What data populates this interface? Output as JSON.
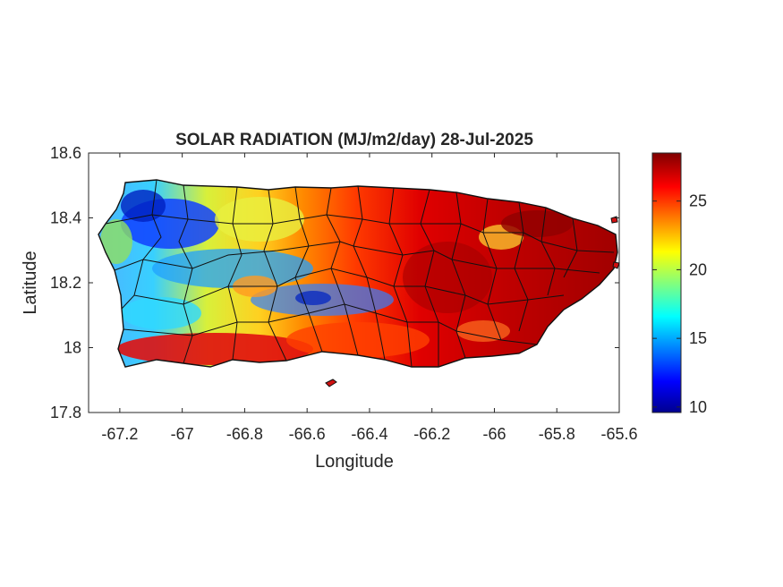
{
  "chart_data": {
    "type": "heatmap",
    "title": "SOLAR RADIATION (MJ/m2/day) 28-Jul-2025",
    "xlabel": "Longitude",
    "ylabel": "Latitude",
    "xlim": [
      -67.3,
      -65.6
    ],
    "ylim": [
      17.8,
      18.6
    ],
    "x_ticks": [
      -67.2,
      -67,
      -66.8,
      -66.6,
      -66.4,
      -66.2,
      -66,
      -65.8,
      -65.6
    ],
    "x_tick_labels": [
      "-67.2",
      "-67",
      "-66.8",
      "-66.6",
      "-66.4",
      "-66.2",
      "-66",
      "-65.8",
      "-65.6"
    ],
    "y_ticks": [
      17.8,
      18,
      18.2,
      18.4,
      18.6
    ],
    "y_tick_labels": [
      "17.8",
      "18",
      "18.2",
      "18.4",
      "18.6"
    ],
    "colorbar": {
      "range": [
        9.6,
        28.5
      ],
      "ticks": [
        10,
        15,
        20,
        25
      ],
      "tick_labels": [
        "10",
        "15",
        "20",
        "25"
      ],
      "colormap": "jet"
    },
    "grid": false
  }
}
